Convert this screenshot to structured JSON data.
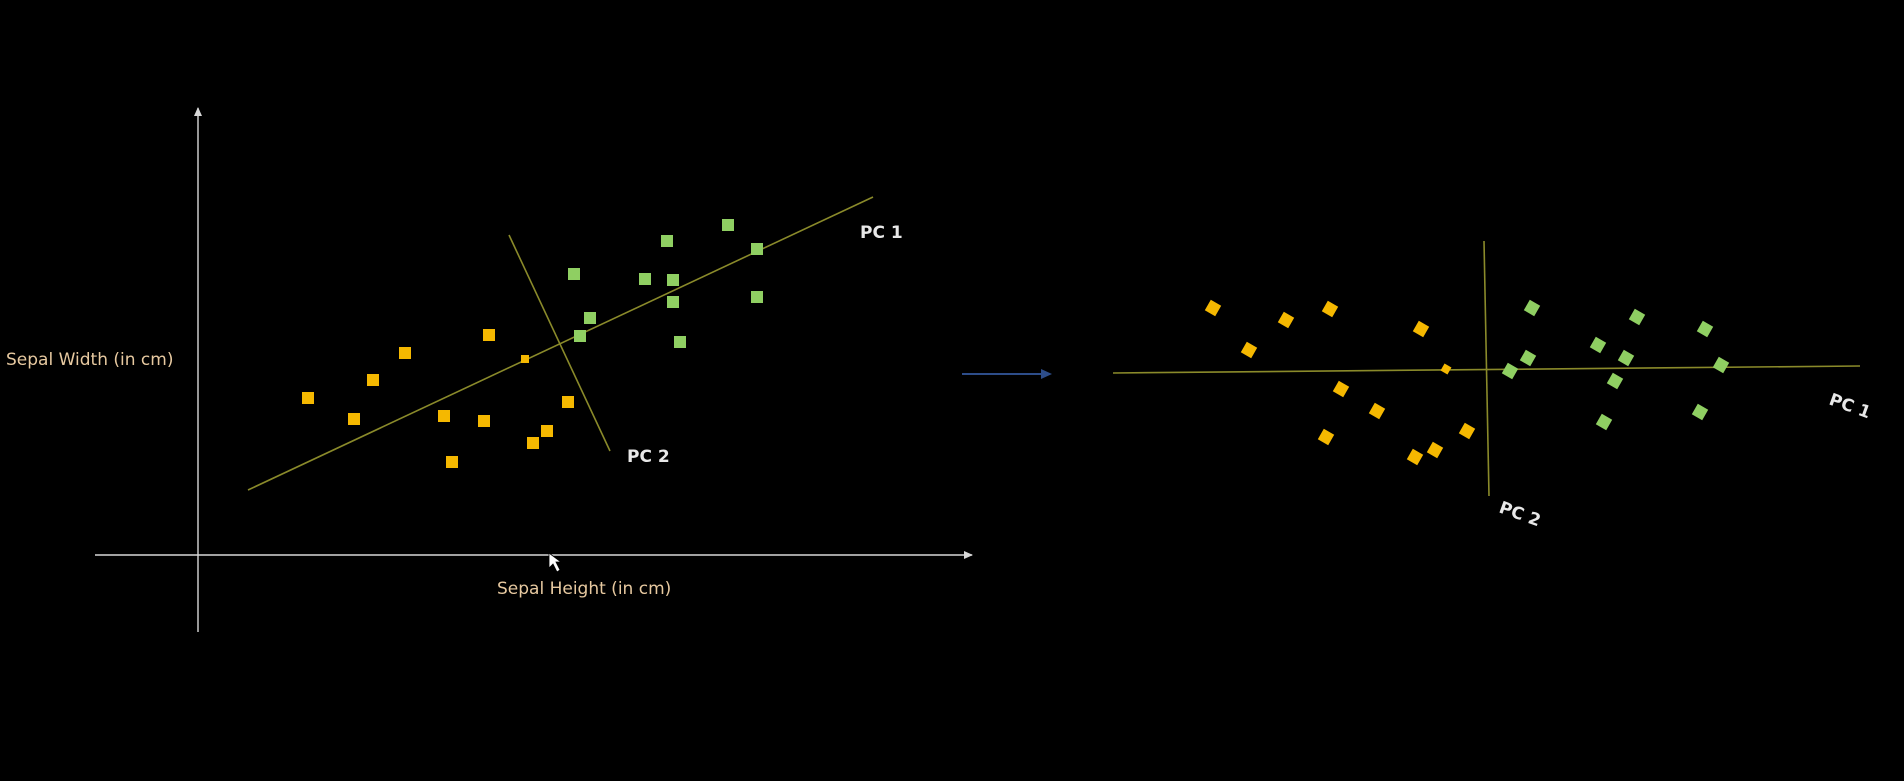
{
  "left_panel": {
    "x_axis_label": "Sepal Height (in cm)",
    "y_axis_label": "Sepal Width (in cm)",
    "pc1_label": "PC 1",
    "pc2_label": "PC 2"
  },
  "right_panel": {
    "pc1_label": "PC 1",
    "pc2_label": "PC 2"
  },
  "colors": {
    "background": "#000000",
    "class_a": "#f5b800",
    "class_b": "#8fcf62",
    "pc_line": "#8a8a2a",
    "axis": "#d8d8d8",
    "transition_arrow": "#2d4d8a"
  },
  "icons": {
    "transition": "arrow-right-icon",
    "cursor": "mouse-pointer-icon"
  }
}
